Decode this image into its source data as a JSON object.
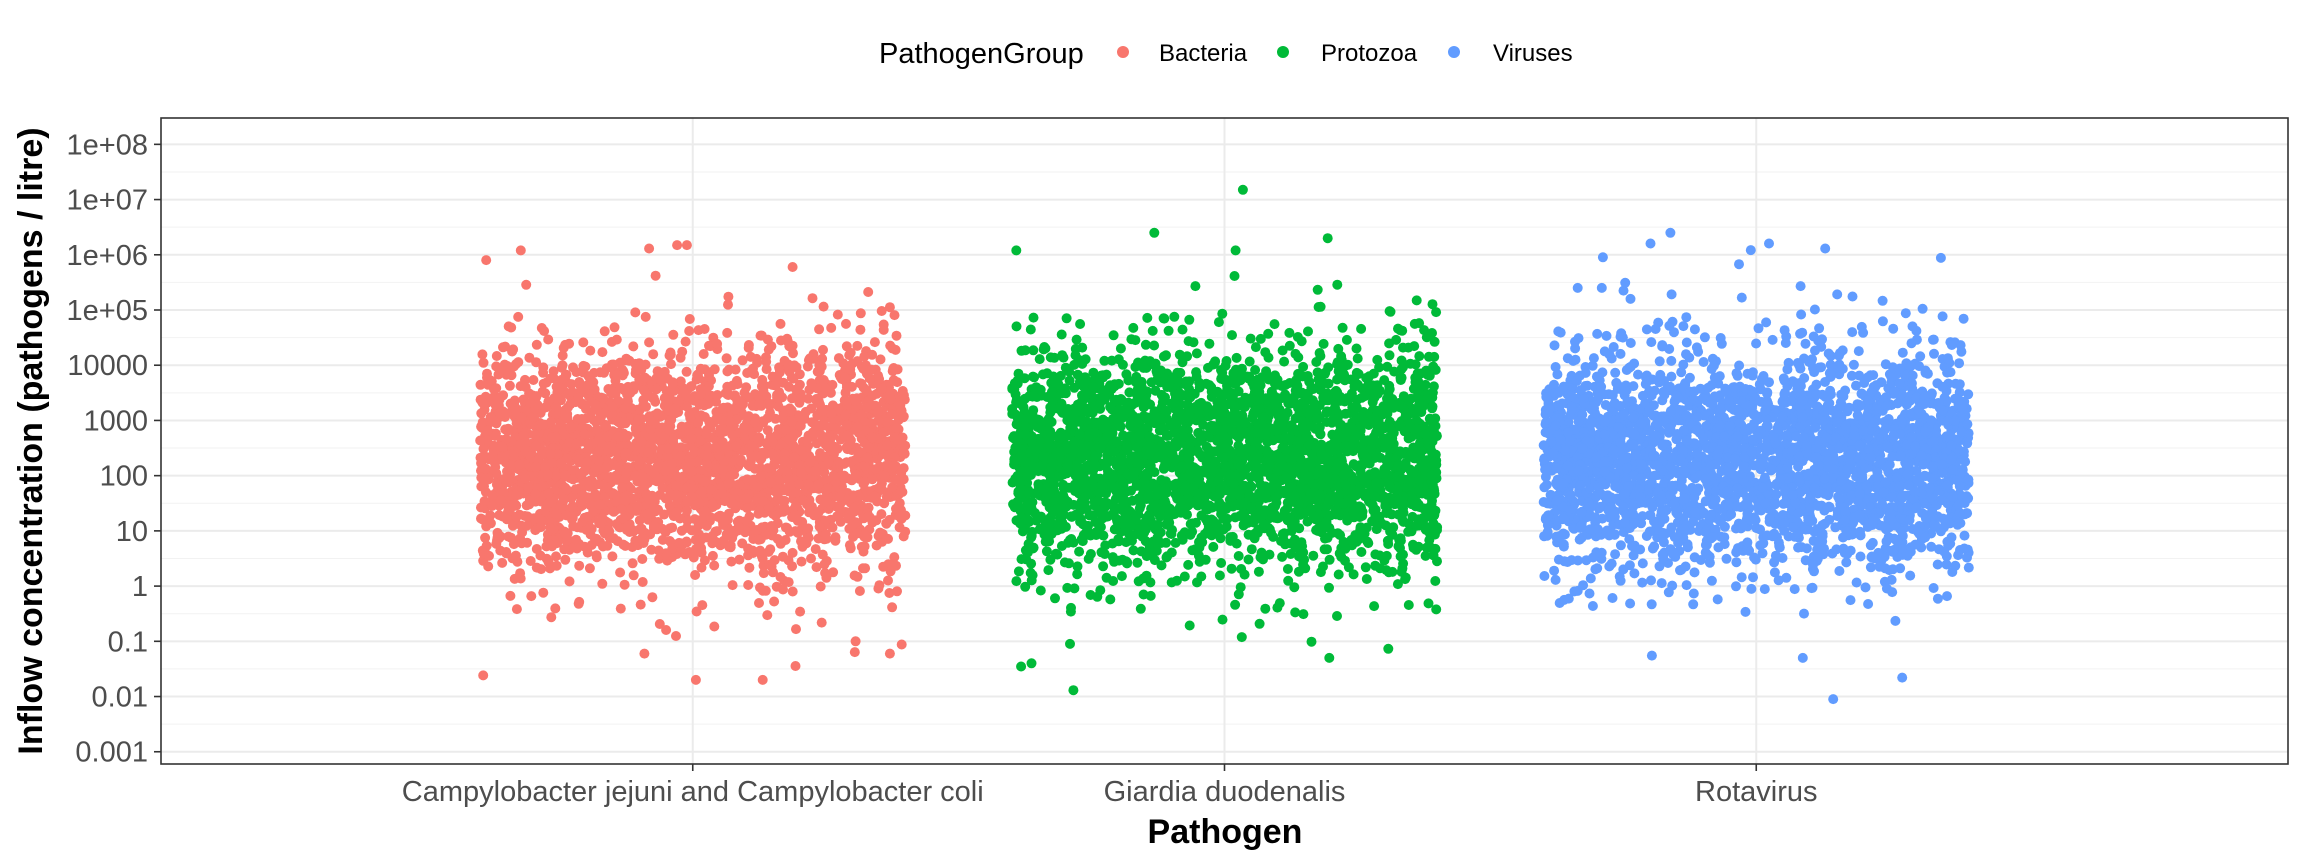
{
  "chart_data": {
    "type": "scatter",
    "xlabel": "Pathogen",
    "ylabel": "Inflow concentration (pathogens / litre)",
    "y_scale": "log10",
    "ylim": [
      0.0006,
      300000000
    ],
    "y_ticks": [
      {
        "value": 0.001,
        "label": "0.001"
      },
      {
        "value": 0.01,
        "label": "0.01"
      },
      {
        "value": 0.1,
        "label": "0.1"
      },
      {
        "value": 1,
        "label": "1"
      },
      {
        "value": 10,
        "label": "10"
      },
      {
        "value": 100,
        "label": "100"
      },
      {
        "value": 1000,
        "label": "1000"
      },
      {
        "value": 10000,
        "label": "10000"
      },
      {
        "value": 100000,
        "label": "1e+05"
      },
      {
        "value": 1000000,
        "label": "1e+06"
      },
      {
        "value": 10000000,
        "label": "1e+07"
      },
      {
        "value": 100000000,
        "label": "1e+08"
      }
    ],
    "categories": [
      "Campylobacter jejuni and Campylobacter coli",
      "Giardia duodenalis",
      "Rotavirus"
    ],
    "grid": true,
    "legend": {
      "title": "PathogenGroup",
      "position": "top",
      "entries": [
        {
          "name": "Bacteria",
          "color": "#F8766D"
        },
        {
          "name": "Protozoa",
          "color": "#00BA38"
        },
        {
          "name": "Viruses",
          "color": "#619CFF"
        }
      ]
    },
    "series": [
      {
        "name": "Bacteria",
        "category": "Campylobacter jejuni and Campylobacter coli",
        "color": "#F8766D",
        "n_points_approx": 3000,
        "median": 200,
        "central_band": [
          5,
          10000
        ],
        "min": 0.02,
        "max": 1500000,
        "notable_points": [
          1500000,
          1300000,
          1200000,
          800000,
          600000,
          0.1,
          0.06,
          0.06,
          0.02
        ]
      },
      {
        "name": "Protozoa",
        "category": "Giardia duodenalis",
        "color": "#00BA38",
        "n_points_approx": 3000,
        "median": 200,
        "central_band": [
          5,
          10000
        ],
        "min": 0.013,
        "max": 15000000,
        "notable_points": [
          15000000,
          2500000,
          2000000,
          1200000,
          1200000,
          0.04,
          0.035,
          0.05,
          0.013
        ]
      },
      {
        "name": "Viruses",
        "category": "Rotavirus",
        "color": "#619CFF",
        "n_points_approx": 3000,
        "median": 200,
        "central_band": [
          5,
          10000
        ],
        "min": 0.009,
        "max": 2500000,
        "notable_points": [
          2500000,
          1600000,
          1600000,
          1300000,
          900000,
          0.05,
          0.022,
          0.055,
          0.009
        ]
      }
    ]
  }
}
